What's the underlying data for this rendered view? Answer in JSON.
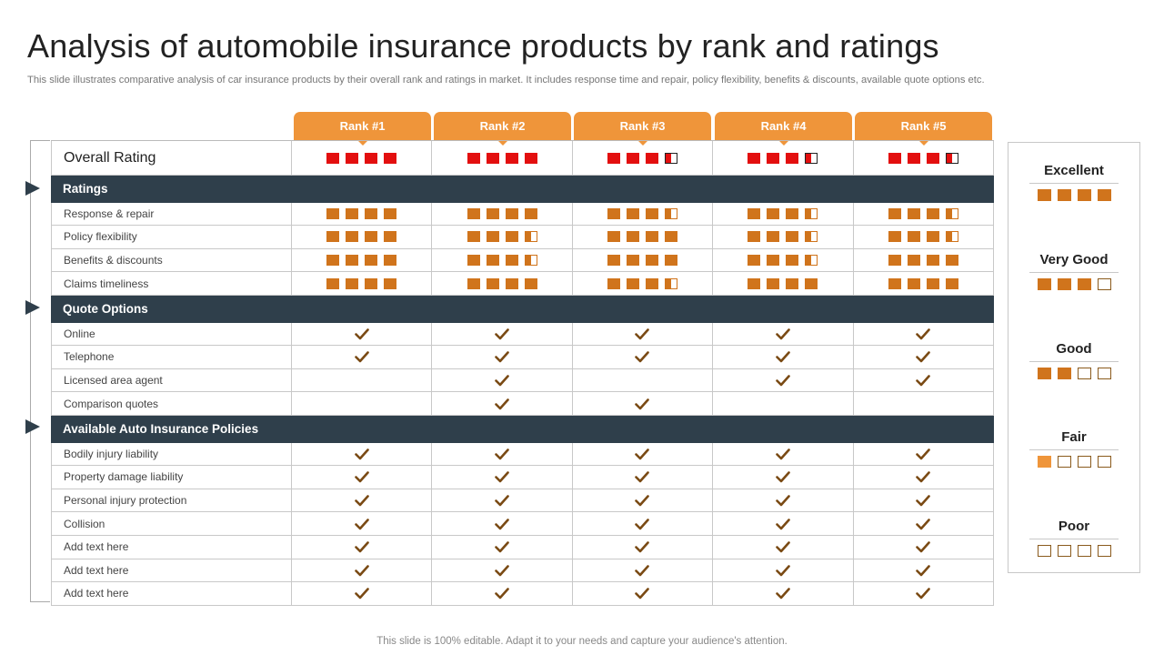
{
  "title": "Analysis of automobile insurance products by rank and ratings",
  "subtitle": "This slide illustrates comparative analysis of car insurance products by their overall rank and ratings in market. It includes response time and repair, policy flexibility,  benefits & discounts, available quote options etc.",
  "footer": "This slide is 100% editable. Adapt it to your needs and capture your audience's attention.",
  "colors": {
    "accent": "#ef953a",
    "box": "#d0741c",
    "red": "#e30f0f",
    "section": "#2f3f4b",
    "check": "#7a4a14"
  },
  "ranks": [
    "Rank #1",
    "Rank #2",
    "Rank #3",
    "Rank #4",
    "Rank #5"
  ],
  "rows": [
    {
      "type": "overall",
      "label": "Overall Rating",
      "cells": [
        4,
        4,
        3.5,
        3.5,
        3.5
      ]
    },
    {
      "type": "section",
      "label": "Ratings"
    },
    {
      "type": "rating",
      "label": "Response & repair",
      "cells": [
        4,
        4,
        3.5,
        3.5,
        3.5
      ]
    },
    {
      "type": "rating",
      "label": "Policy flexibility",
      "cells": [
        4,
        3.5,
        4,
        3.5,
        3.5
      ]
    },
    {
      "type": "rating",
      "label": "Benefits & discounts",
      "cells": [
        4,
        3.5,
        4,
        3.5,
        4
      ]
    },
    {
      "type": "rating",
      "label": "Claims timeliness",
      "cells": [
        4,
        4,
        3.5,
        4,
        4
      ]
    },
    {
      "type": "section",
      "label": "Quote Options"
    },
    {
      "type": "check",
      "label": "Online",
      "cells": [
        true,
        true,
        true,
        true,
        true
      ]
    },
    {
      "type": "check",
      "label": "Telephone",
      "cells": [
        true,
        true,
        true,
        true,
        true
      ]
    },
    {
      "type": "check",
      "label": "Licensed area agent",
      "cells": [
        false,
        true,
        false,
        true,
        true
      ]
    },
    {
      "type": "check",
      "label": "Comparison quotes",
      "cells": [
        false,
        true,
        true,
        false,
        false
      ]
    },
    {
      "type": "section",
      "label": "Available Auto Insurance Policies"
    },
    {
      "type": "check",
      "label": "Bodily injury liability",
      "cells": [
        true,
        true,
        true,
        true,
        true
      ]
    },
    {
      "type": "check",
      "label": "Property damage liability",
      "cells": [
        true,
        true,
        true,
        true,
        true
      ]
    },
    {
      "type": "check",
      "label": "Personal injury protection",
      "cells": [
        true,
        true,
        true,
        true,
        true
      ]
    },
    {
      "type": "check",
      "label": "Collision",
      "cells": [
        true,
        true,
        true,
        true,
        true
      ]
    },
    {
      "type": "check",
      "label": "Add text here",
      "cells": [
        true,
        true,
        true,
        true,
        true
      ]
    },
    {
      "type": "check",
      "label": "Add text here",
      "cells": [
        true,
        true,
        true,
        true,
        true
      ]
    },
    {
      "type": "check",
      "label": "Add text here",
      "cells": [
        true,
        true,
        true,
        true,
        true
      ]
    }
  ],
  "legend": [
    {
      "label": "Excellent",
      "filled": 4
    },
    {
      "label": "Very Good",
      "filled": 3
    },
    {
      "label": "Good",
      "filled": 2
    },
    {
      "label": "Fair",
      "filled": 1
    },
    {
      "label": "Poor",
      "filled": 0
    }
  ]
}
